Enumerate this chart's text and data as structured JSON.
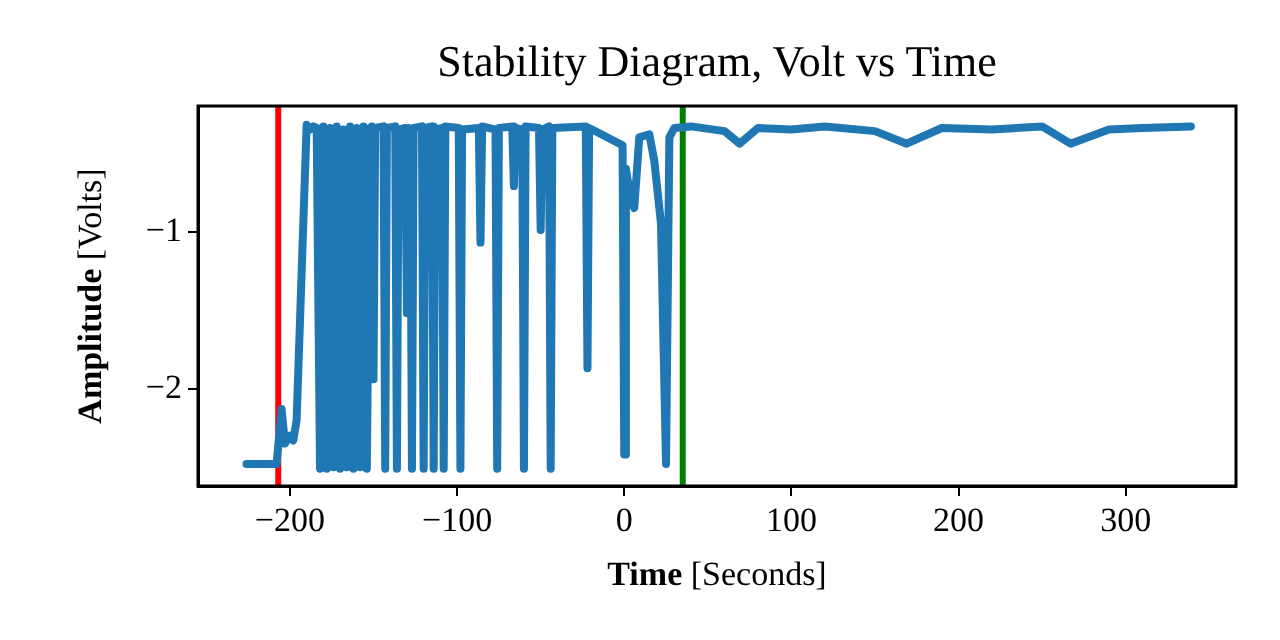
{
  "chart_data": {
    "type": "line",
    "title": "Stability Diagram, Volt vs Time",
    "xlabel": "Time [Seconds]",
    "ylabel": "Amplitude [Volts]",
    "xlim": [
      -255,
      366
    ],
    "ylim": [
      -2.62,
      -0.2
    ],
    "xticks": [
      {
        "value": -200,
        "label": "−200"
      },
      {
        "value": -100,
        "label": "−100"
      },
      0,
      100,
      200,
      300
    ],
    "yticks": [
      {
        "value": -2,
        "label": "−2"
      },
      {
        "value": -1,
        "label": "−1"
      }
    ],
    "grid": false,
    "legend": false,
    "marker": "none",
    "line_style": "solid",
    "ref_lines": [
      {
        "axis": "x",
        "value": -207,
        "color": "#ff0000"
      },
      {
        "axis": "x",
        "value": 35,
        "color": "#008000"
      }
    ],
    "series": [
      {
        "color": "#1f77b4",
        "x": [
          -226,
          -208,
          -205,
          -203,
          -200,
          -198,
          -196,
          -190,
          -188,
          -186,
          -184,
          -182,
          -180,
          -178,
          -176,
          -174,
          -172,
          -170,
          -168,
          -166,
          -164,
          -162,
          -160,
          -158,
          -156,
          -154,
          -152,
          -151,
          -150,
          -149,
          -144,
          -143,
          -142,
          -137,
          -136,
          -135,
          -131,
          -130,
          -129,
          -128,
          -127,
          -126,
          -121,
          -120,
          -119,
          -115,
          -114,
          -113,
          -109,
          -108,
          -107,
          -99,
          -98,
          -97,
          -87,
          -86,
          -85,
          -77,
          -76,
          -75,
          -67,
          -66,
          -65,
          -61,
          -60,
          -59,
          -51,
          -50,
          -49,
          -45,
          -44,
          -43,
          -23,
          -22,
          -21,
          -1,
          0,
          1,
          4,
          6,
          9,
          15,
          18,
          22,
          25,
          27,
          30,
          40,
          60,
          69,
          80,
          100,
          120,
          150,
          169,
          190,
          220,
          250,
          267,
          290,
          310,
          339
        ],
        "values": [
          -2.48,
          -2.48,
          -2.13,
          -2.35,
          -2.3,
          -2.33,
          -2.2,
          -0.32,
          -0.35,
          -0.33,
          -0.34,
          -2.51,
          -0.33,
          -2.51,
          -0.34,
          -2.5,
          -0.33,
          -2.51,
          -0.35,
          -2.5,
          -0.33,
          -2.51,
          -0.34,
          -2.5,
          -0.33,
          -2.51,
          -0.34,
          -0.33,
          -1.94,
          -0.34,
          -0.33,
          -2.51,
          -0.34,
          -0.33,
          -2.51,
          -0.35,
          -0.34,
          -1.52,
          -0.34,
          -0.35,
          -2.51,
          -0.34,
          -0.33,
          -2.51,
          -0.34,
          -0.33,
          -2.51,
          -0.35,
          -0.34,
          -2.51,
          -0.33,
          -0.34,
          -2.51,
          -0.35,
          -0.34,
          -1.07,
          -0.33,
          -0.35,
          -2.51,
          -0.34,
          -0.33,
          -0.71,
          -0.34,
          -0.35,
          -2.51,
          -0.33,
          -0.34,
          -0.99,
          -0.35,
          -0.33,
          -2.51,
          -0.34,
          -0.33,
          -1.87,
          -0.34,
          -0.45,
          -2.42,
          -0.6,
          -0.8,
          -0.85,
          -0.4,
          -0.38,
          -0.55,
          -0.95,
          -2.48,
          -0.4,
          -0.34,
          -0.33,
          -0.36,
          -0.44,
          -0.34,
          -0.35,
          -0.33,
          -0.36,
          -0.44,
          -0.34,
          -0.35,
          -0.33,
          -0.44,
          -0.35,
          -0.34,
          -0.33
        ]
      }
    ]
  }
}
